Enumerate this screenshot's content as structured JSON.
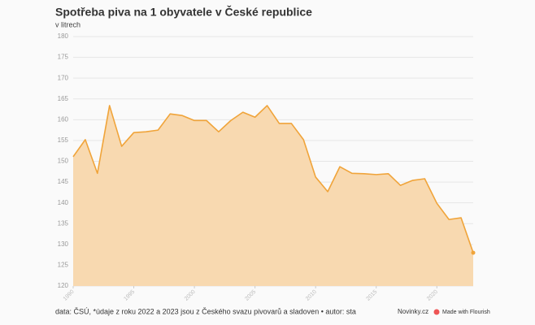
{
  "chart_data": {
    "type": "area",
    "title": "Spotřeba piva na 1 obyvatele v České republice",
    "subtitle": "v litrech",
    "x": [
      1990,
      1991,
      1992,
      1993,
      1994,
      1995,
      1996,
      1997,
      1998,
      1999,
      2000,
      2001,
      2002,
      2003,
      2004,
      2005,
      2006,
      2007,
      2008,
      2009,
      2010,
      2011,
      2012,
      2013,
      2014,
      2015,
      2016,
      2017,
      2018,
      2019,
      2020,
      2021,
      2022,
      2023
    ],
    "series": [
      {
        "name": "Spotřeba piva",
        "color": "#f0a43a",
        "values": [
          151.1,
          155.2,
          147.1,
          163.4,
          153.6,
          156.9,
          157.1,
          157.5,
          161.4,
          161,
          159.8,
          159.8,
          157.1,
          159.8,
          161.8,
          160.6,
          163.4,
          159.1,
          159.1,
          155.2,
          146.2,
          142.7,
          148.7,
          147.1,
          147,
          146.8,
          147,
          144.2,
          145.4,
          145.8,
          139.9,
          136,
          136.4,
          128
        ]
      }
    ],
    "fill_color": "#f8d9b0",
    "xlim": [
      1990,
      2023
    ],
    "xticks": [
      1990,
      1995,
      2000,
      2005,
      2010,
      2015,
      2020
    ],
    "ylim": [
      120,
      180
    ],
    "yticks": [
      120,
      125,
      130,
      135,
      140,
      145,
      150,
      155,
      160,
      165,
      170,
      175,
      180
    ],
    "grid": true,
    "source": "data: ČSÚ, *údaje z roku 2022 a 2023 jsou z Českého svazu pivovarů a sladoven • autor: sta",
    "publisher": "Novinky.cz",
    "credit": "Made with Flourish"
  }
}
